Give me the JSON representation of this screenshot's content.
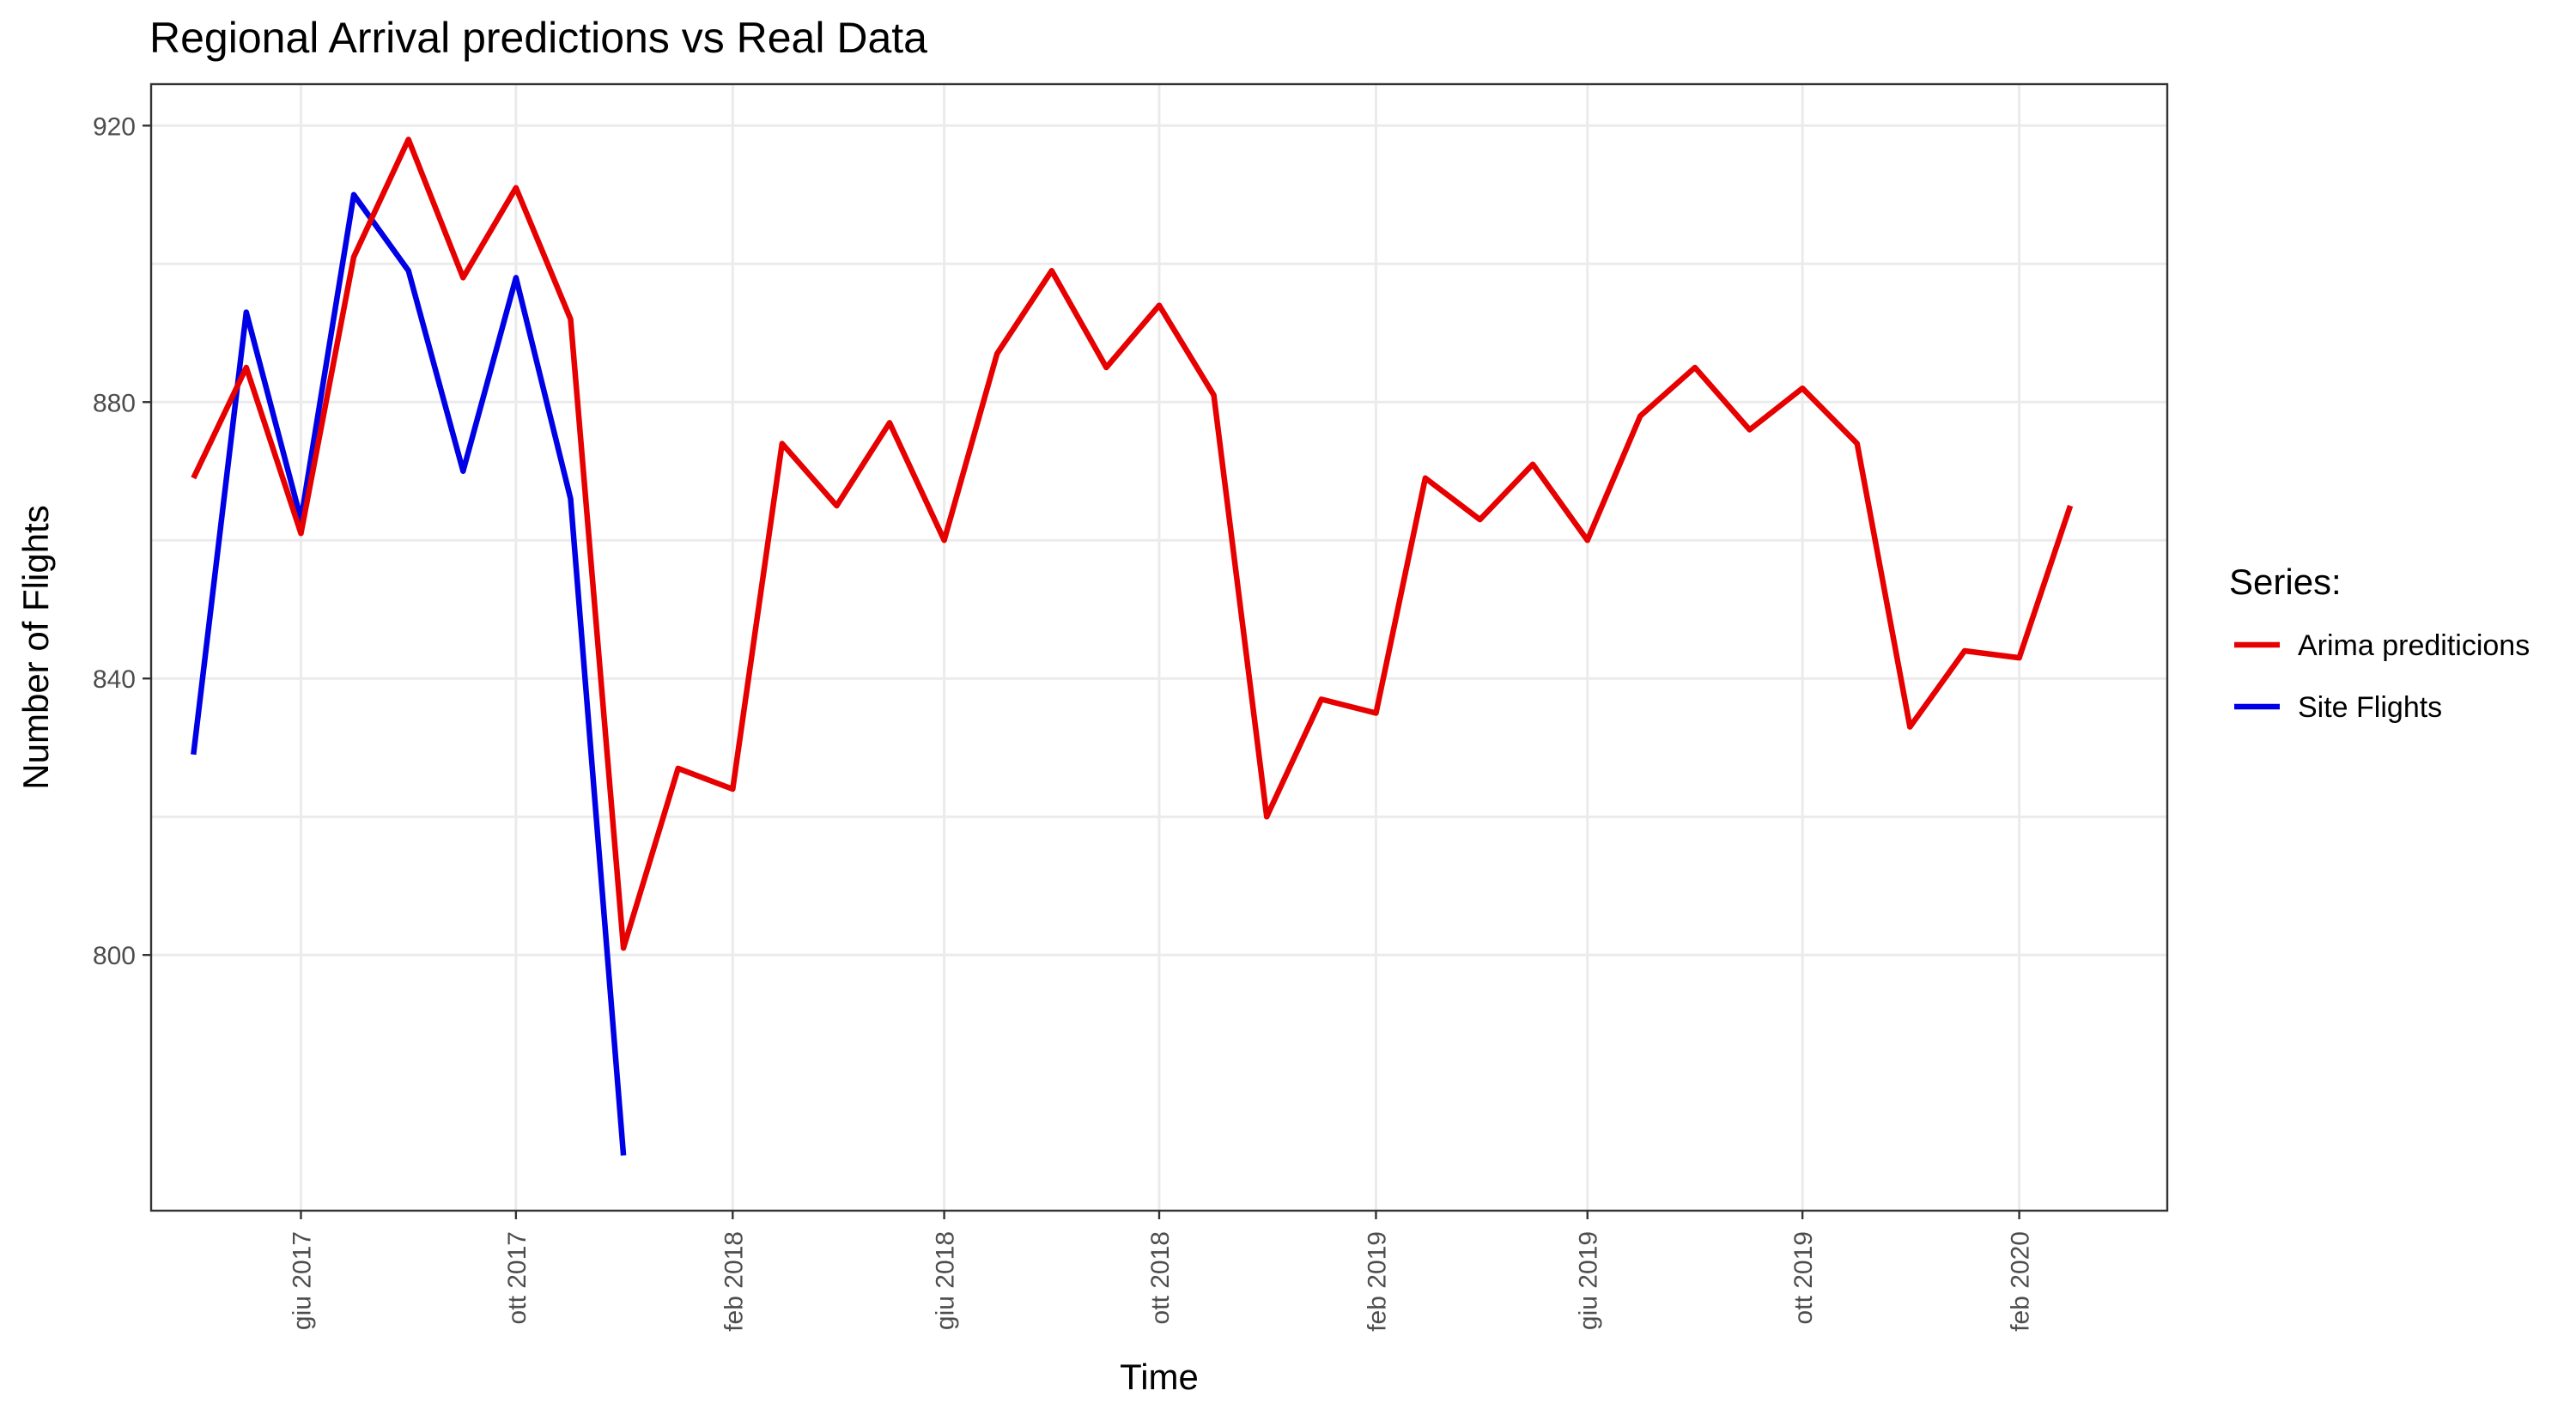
{
  "chart_data": {
    "type": "line",
    "title": "Regional Arrival predictions vs Real Data",
    "xlabel": "Time",
    "ylabel": "Number of Flights",
    "x": [
      "2017-04",
      "2017-05",
      "2017-06",
      "2017-07",
      "2017-08",
      "2017-09",
      "2017-10",
      "2017-11",
      "2017-12",
      "2018-01",
      "2018-02",
      "2018-03",
      "2018-04",
      "2018-05",
      "2018-06",
      "2018-07",
      "2018-08",
      "2018-09",
      "2018-10",
      "2018-11",
      "2018-12",
      "2019-01",
      "2019-02",
      "2019-03",
      "2019-04",
      "2019-05",
      "2019-06",
      "2019-07",
      "2019-08",
      "2019-09",
      "2019-10",
      "2019-11",
      "2019-12",
      "2020-01",
      "2020-02",
      "2020-03"
    ],
    "x_tick_labels": [
      "giu 2017",
      "ott 2017",
      "feb 2018",
      "giu 2018",
      "ott 2018",
      "feb 2019",
      "giu 2019",
      "ott 2019",
      "feb 2020"
    ],
    "x_tick_dates": [
      "2017-06",
      "2017-10",
      "2018-02",
      "2018-06",
      "2018-10",
      "2019-02",
      "2019-06",
      "2019-10",
      "2020-02"
    ],
    "y_ticks": [
      800,
      840,
      880,
      920
    ],
    "xlim": [
      "2017-03-08",
      "2020-04-25"
    ],
    "ylim": [
      763,
      926
    ],
    "grid": true,
    "legend": {
      "title": "Series:",
      "position": "right"
    },
    "series": [
      {
        "name": "Arima prediticions",
        "color": "#e60000",
        "values": [
          869,
          885,
          861,
          901,
          918,
          898,
          911,
          892,
          801,
          827,
          824,
          874,
          865,
          877,
          860,
          887,
          899,
          885,
          894,
          881,
          820,
          837,
          835,
          869,
          863,
          871,
          860,
          878,
          885,
          876,
          882,
          874,
          833,
          844,
          843,
          865
        ]
      },
      {
        "name": "Site Flights",
        "color": "#0000e6",
        "values": [
          829,
          893,
          863,
          910,
          899,
          870,
          898,
          866,
          771,
          null,
          null,
          null,
          null,
          null,
          null,
          null,
          null,
          null,
          null,
          null,
          null,
          null,
          null,
          null,
          null,
          null,
          null,
          null,
          null,
          null,
          null,
          null,
          null,
          null,
          null,
          null
        ]
      }
    ]
  }
}
